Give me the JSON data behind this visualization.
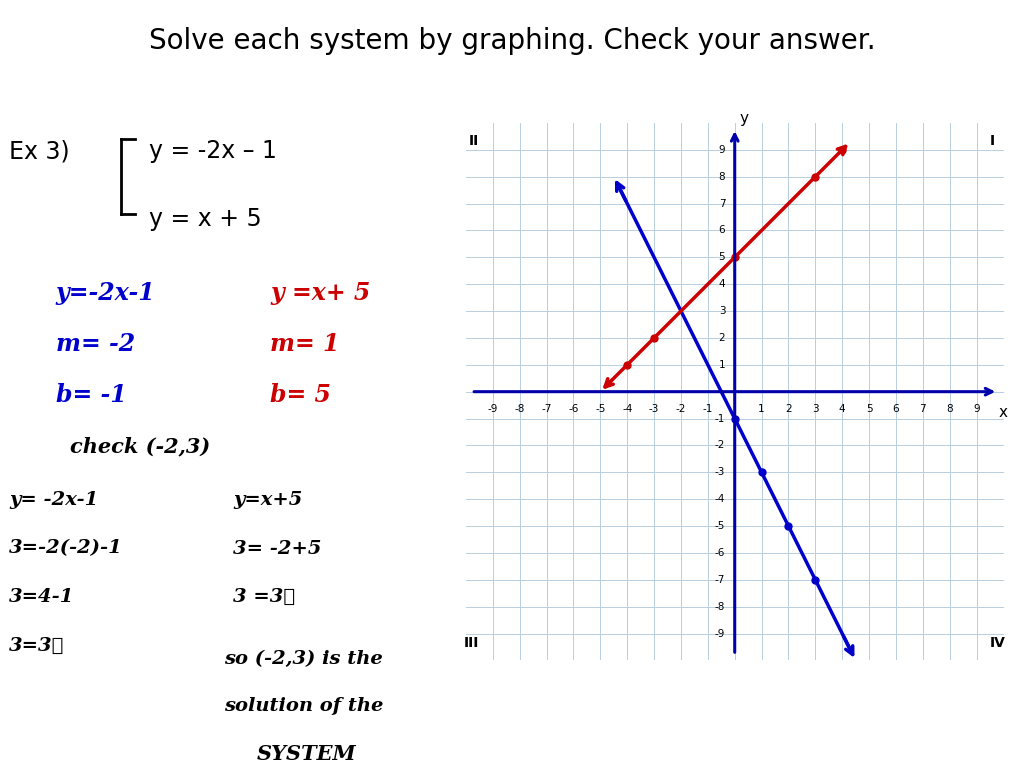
{
  "title": "Solve each system by graphing. Check your answer.",
  "title_fontsize": 20,
  "ex_label": "Ex 3)",
  "eq1": "y = -2x – 1",
  "eq2": "y = x + 5",
  "hw_blue1": "y=-2x-1",
  "hw_blue2": "m= -2",
  "hw_blue3": "b= -1",
  "hw_red1": "y =x+ 5",
  "hw_red2": "m= 1",
  "hw_red3": "b= 5",
  "check_header": "check (-2,3)",
  "chk_l1": "y= -2x-1",
  "chk_l2": "3=-2(-2)-1",
  "chk_l3": "3=4-1",
  "chk_l4": "3=3✓",
  "chk_r1": "y=x+5",
  "chk_r2": "3= -2+5",
  "chk_r3": "3 =3✓",
  "sol1": "so (-2,3) is the",
  "sol2": "solution of the",
  "sol3": "SYSTEM",
  "grid_min": -9,
  "grid_max": 9,
  "blue_m": -2,
  "blue_b": -1,
  "red_m": 1,
  "red_b": 5,
  "blue_color": "#0000cc",
  "red_color": "#cc0000",
  "bg_color": "#ffffff",
  "grid_bg": "#dde8f0",
  "grid_line_color": "#b8cfe0",
  "axis_color": "#0000aa"
}
